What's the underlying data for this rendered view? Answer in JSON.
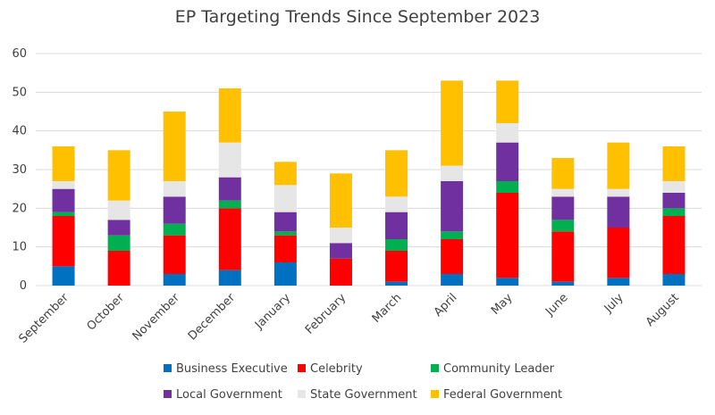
{
  "chart_data": {
    "type": "bar",
    "stacked": true,
    "title": "EP Targeting Trends Since September 2023",
    "categories": [
      "September",
      "October",
      "November",
      "December",
      "January",
      "February",
      "March",
      "April",
      "May",
      "June",
      "July",
      "August"
    ],
    "ylim": [
      0,
      60
    ],
    "yticks": [
      0,
      10,
      20,
      30,
      40,
      50,
      60
    ],
    "grid": true,
    "legend_position": "bottom",
    "series": [
      {
        "name": "Business Executive",
        "color": "#0070C0",
        "values": [
          5,
          0,
          3,
          4,
          6,
          0,
          1,
          3,
          2,
          1,
          2,
          3
        ]
      },
      {
        "name": "Celebrity",
        "color": "#FF0000",
        "values": [
          13,
          9,
          10,
          16,
          7,
          7,
          8,
          9,
          22,
          13,
          13,
          15
        ]
      },
      {
        "name": "Community Leader",
        "color": "#00B050",
        "values": [
          1,
          4,
          3,
          2,
          1,
          0,
          3,
          2,
          3,
          3,
          0,
          2
        ]
      },
      {
        "name": "Local Government",
        "color": "#7030A0",
        "values": [
          6,
          4,
          7,
          6,
          5,
          4,
          7,
          13,
          10,
          6,
          8,
          4
        ]
      },
      {
        "name": "State Government",
        "color": "#E7E6E6",
        "values": [
          2,
          5,
          4,
          9,
          7,
          4,
          4,
          4,
          5,
          2,
          2,
          3
        ]
      },
      {
        "name": "Federal Government",
        "color": "#FFC000",
        "values": [
          9,
          13,
          18,
          14,
          6,
          14,
          12,
          22,
          11,
          8,
          12,
          9
        ]
      }
    ]
  }
}
